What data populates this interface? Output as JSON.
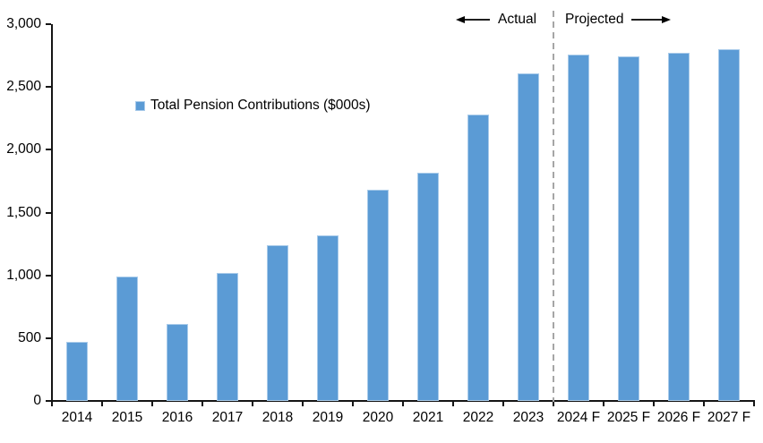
{
  "chart_data": {
    "type": "bar",
    "title": "",
    "series_name": "Total Pension Contributions ($000s)",
    "categories": [
      "2014",
      "2015",
      "2016",
      "2017",
      "2018",
      "2019",
      "2020",
      "2021",
      "2022",
      "2023",
      "2024 F",
      "2025 F",
      "2026 F",
      "2027 F"
    ],
    "values": [
      470,
      990,
      610,
      1020,
      1240,
      1320,
      1680,
      1815,
      2280,
      2610,
      2755,
      2745,
      2775,
      2800
    ],
    "xlabel": "",
    "ylabel": "",
    "ylim": [
      0,
      3000
    ],
    "ytick_interval": 500,
    "yticks": [
      "0",
      "500",
      "1,000",
      "1,500",
      "2,000",
      "2,500",
      "3,000"
    ],
    "grid": false,
    "legend_position": "inside-upper-left",
    "bar_color": "#5B9BD5",
    "bar_border_color": "#A9CBEA",
    "divider_color": "#A6A6A6",
    "divider_after_index": 10,
    "annotations": {
      "actual": "Actual",
      "projected": "Projected"
    }
  }
}
